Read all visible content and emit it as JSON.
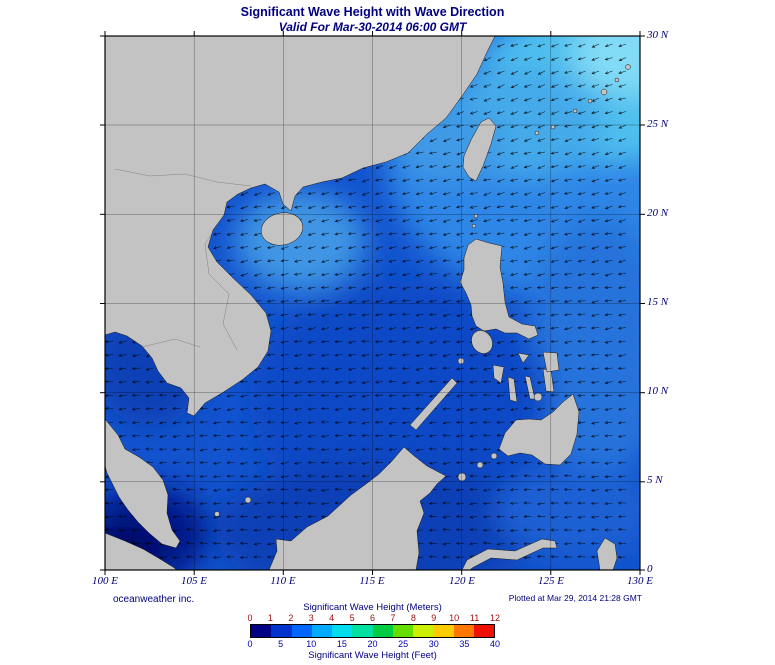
{
  "header": {
    "title": "Significant Wave Height with Wave Direction",
    "subtitle": "Valid For Mar-30-2014 06:00 GMT"
  },
  "footer": {
    "credit": "oceanweather inc.",
    "plotted": "Plotted at Mar 29, 2014 21:28 GMT"
  },
  "axes": {
    "lon_ticks": [
      "100 E",
      "105 E",
      "110 E",
      "115 E",
      "120 E",
      "125 E",
      "130 E"
    ],
    "lat_ticks": [
      "30 N",
      "25 N",
      "20 N",
      "15 N",
      "10 N",
      "5 N",
      "0"
    ]
  },
  "legend": {
    "meters_label": "Significant Wave Height (Meters)",
    "feet_label": "Significant Wave Height (Feet)",
    "meters_ticks": [
      "0",
      "1",
      "2",
      "3",
      "4",
      "5",
      "6",
      "7",
      "8",
      "9",
      "10",
      "11",
      "12"
    ],
    "feet_ticks": [
      "0",
      "5",
      "10",
      "15",
      "20",
      "25",
      "30",
      "35",
      "40"
    ],
    "colors": [
      "#000082",
      "#0033CC",
      "#0066FF",
      "#00AAFF",
      "#00DDEE",
      "#00E0A0",
      "#00CC44",
      "#66DD00",
      "#CCEE00",
      "#FFCC00",
      "#FF7700",
      "#EE1100"
    ],
    "meters_tick_color": "#A01010",
    "feet_tick_color": "#0000B0"
  },
  "map": {
    "sea_color": "#1253CE",
    "land_color": "#C3C3C3",
    "arrow_color": "#000000",
    "arrow_spacing": 13.5,
    "arrow_length": 7.5
  }
}
